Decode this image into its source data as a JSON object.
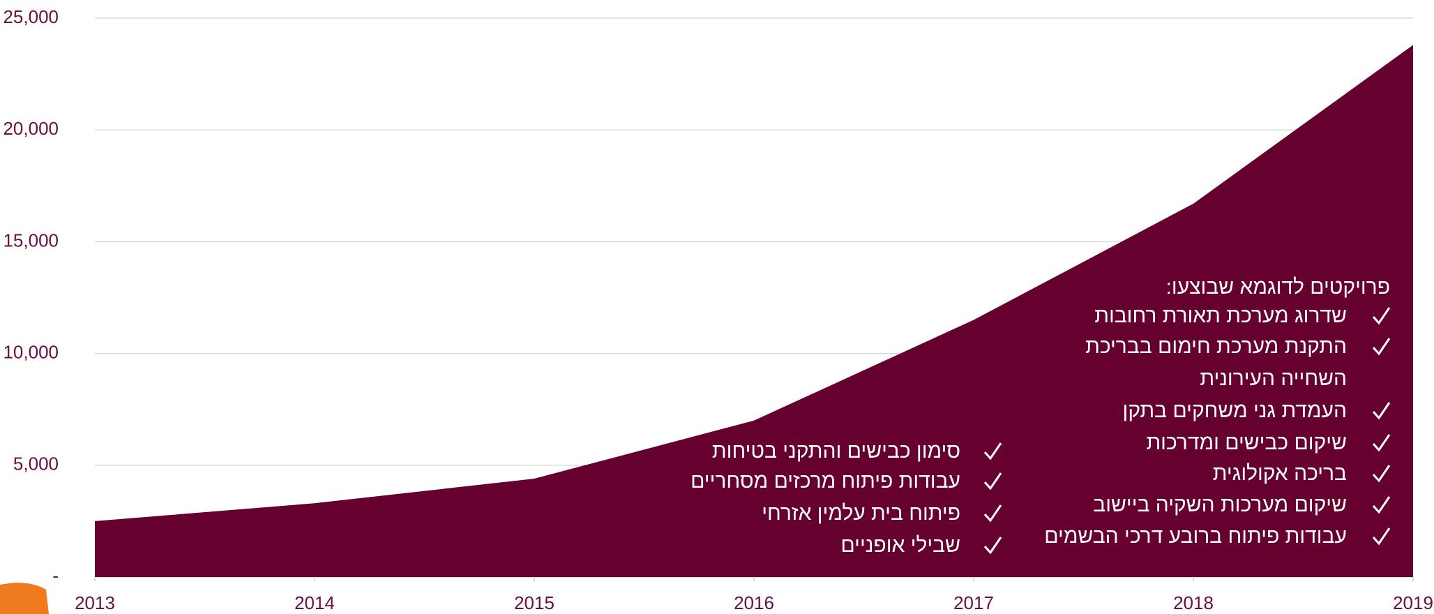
{
  "chart_data": {
    "type": "area",
    "categories": [
      "2013",
      "2014",
      "2015",
      "2016",
      "2017",
      "2018",
      "2019"
    ],
    "values": [
      2500,
      3300,
      4400,
      7000,
      11500,
      16700,
      23800
    ],
    "color": "#65002f",
    "ylim": [
      0,
      25000
    ],
    "yticks": [
      {
        "value": 0,
        "label": "-"
      },
      {
        "value": 5000,
        "label": "5,000"
      },
      {
        "value": 10000,
        "label": "10,000"
      },
      {
        "value": 15000,
        "label": "15,000"
      },
      {
        "value": 20000,
        "label": "20,000"
      },
      {
        "value": 25000,
        "label": "25,000"
      }
    ],
    "grid": true,
    "annotations": {
      "heading": "פרויקטים לדוגמא שבוצעו:",
      "right_items": [
        [
          "שדרוג מערכת תאורת רחובות"
        ],
        [
          "התקנת מערכת חימום בבריכת",
          "השחייה העירונית"
        ],
        [
          "העמדת גני משחקים בתקן"
        ],
        [
          "שיקום כבישים ומדרכות"
        ],
        [
          "בריכה אקולוגית"
        ],
        [
          "שיקום מערכות השקיה ביישוב"
        ],
        [
          "עבודות פיתוח ברובע דרכי הבשמים"
        ]
      ],
      "left_items": [
        [
          "סימון כבישים והתקני בטיחות"
        ],
        [
          "עבודות פיתוח מרכזים מסחריים"
        ],
        [
          "פיתוח בית עלמין אזרחי"
        ],
        [
          "שבילי אופניים"
        ]
      ]
    }
  }
}
